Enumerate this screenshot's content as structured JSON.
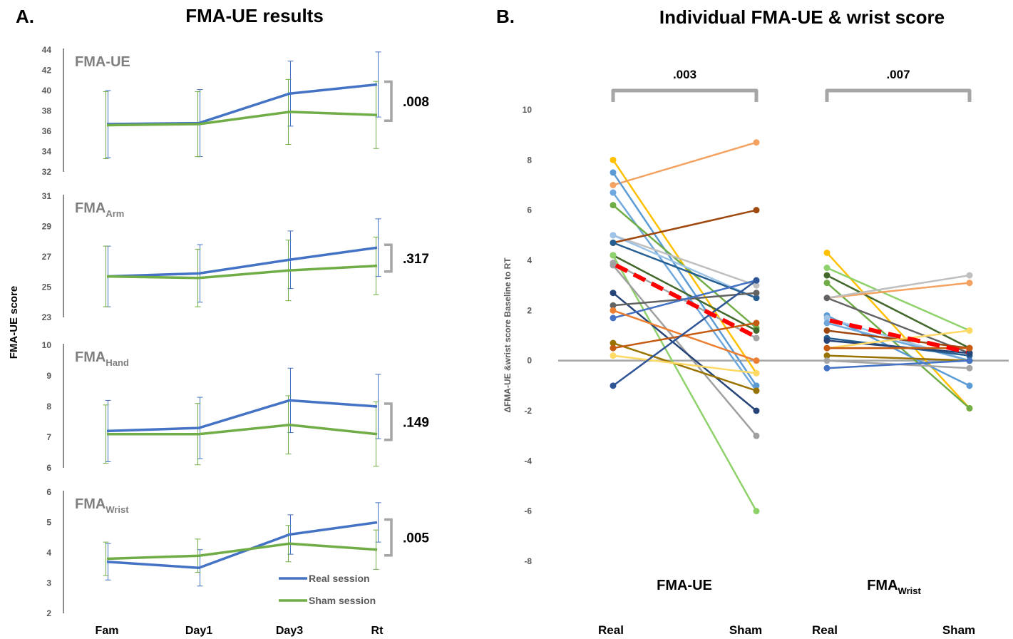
{
  "colors": {
    "real": "#4472C4",
    "sham": "#70AD47",
    "axis": "#404040",
    "grey_text": "#7F7F7F",
    "bracket": "#A6A6A6",
    "mean": "#FF0000",
    "zero_line": "#A6A6A6",
    "tick": "#595959"
  },
  "chart_data": [
    {
      "type": "line",
      "panel_label": "A.",
      "title": "FMA-UE results",
      "ylabel": "FMA-UE score",
      "categories": [
        "Fam",
        "Day1",
        "Day3",
        "Rt"
      ],
      "legend": [
        "Real session",
        "Sham session"
      ],
      "legend_position": "bottom-right of last subplot",
      "subplots": [
        {
          "name": "FMA-UE",
          "name_main": "FMA-UE",
          "name_sub": "",
          "ylim": [
            32,
            44
          ],
          "yticks": [
            32,
            34,
            36,
            38,
            40,
            42,
            44
          ],
          "p_value": ".008",
          "series": [
            {
              "name": "Real session",
              "values": [
                36.7,
                36.8,
                39.7,
                40.6
              ],
              "err": [
                3.3,
                3.3,
                3.2,
                3.2
              ]
            },
            {
              "name": "Sham session",
              "values": [
                36.6,
                36.7,
                37.9,
                37.6
              ],
              "err": [
                3.3,
                3.2,
                3.2,
                3.3
              ]
            }
          ]
        },
        {
          "name": "FMA_Arm",
          "name_main": "FMA",
          "name_sub": "Arm",
          "ylim": [
            23,
            31
          ],
          "yticks": [
            23,
            25,
            27,
            29,
            31
          ],
          "p_value": ".317",
          "series": [
            {
              "name": "Real session",
              "values": [
                25.7,
                25.9,
                26.8,
                27.6
              ],
              "err": [
                2.0,
                1.9,
                1.9,
                1.9
              ]
            },
            {
              "name": "Sham session",
              "values": [
                25.7,
                25.6,
                26.1,
                26.4
              ],
              "err": [
                2.0,
                1.9,
                2.0,
                1.9
              ]
            }
          ]
        },
        {
          "name": "FMA_Hand",
          "name_main": "FMA",
          "name_sub": "Hand",
          "ylim": [
            6,
            10
          ],
          "yticks": [
            6,
            7,
            8,
            9,
            10
          ],
          "p_value": ".149",
          "series": [
            {
              "name": "Real session",
              "values": [
                7.2,
                7.3,
                8.2,
                8.0
              ],
              "err": [
                1.0,
                1.0,
                1.05,
                1.05
              ]
            },
            {
              "name": "Sham session",
              "values": [
                7.1,
                7.1,
                7.4,
                7.1
              ],
              "err": [
                0.95,
                1.0,
                0.95,
                1.05
              ]
            }
          ]
        },
        {
          "name": "FMA_Wrist",
          "name_main": "FMA",
          "name_sub": "Wrist",
          "ylim": [
            2,
            6
          ],
          "yticks": [
            2,
            3,
            4,
            5,
            6
          ],
          "p_value": ".005",
          "series": [
            {
              "name": "Real session",
              "values": [
                3.7,
                3.5,
                4.6,
                5.0
              ],
              "err": [
                0.6,
                0.6,
                0.65,
                0.65
              ]
            },
            {
              "name": "Sham session",
              "values": [
                3.8,
                3.9,
                4.3,
                4.1
              ],
              "err": [
                0.55,
                0.55,
                0.6,
                0.65
              ]
            }
          ]
        }
      ]
    },
    {
      "type": "line",
      "subtype": "paired individual lines",
      "panel_label": "B.",
      "title": "Individual FMA-UE & wrist score",
      "ylabel": "ΔFMA-UE &wrist score Baseline to RT",
      "ylim": [
        -8,
        10
      ],
      "yticks": [
        -8,
        -6,
        -4,
        -2,
        0,
        2,
        4,
        6,
        8,
        10
      ],
      "groups": [
        {
          "name": "FMA-UE",
          "name_main": "FMA-UE",
          "name_sub": "",
          "x_labels": [
            "Real",
            "Sham"
          ],
          "p_value": ".003",
          "mean": [
            3.8,
            1.0
          ],
          "pairs": [
            {
              "values": [
                8.0,
                -0.5
              ],
              "color": "#FFC000"
            },
            {
              "values": [
                7.0,
                8.7
              ],
              "color": "#F4A261"
            },
            {
              "values": [
                7.5,
                -1.0
              ],
              "color": "#5B9BD5"
            },
            {
              "values": [
                6.7,
                -1.2
              ],
              "color": "#6FA8DC"
            },
            {
              "values": [
                6.2,
                1.3
              ],
              "color": "#70AD47"
            },
            {
              "values": [
                5.0,
                3.0
              ],
              "color": "#BFBFBF"
            },
            {
              "values": [
                5.0,
                2.5
              ],
              "color": "#9DC3E6"
            },
            {
              "values": [
                4.7,
                6.0
              ],
              "color": "#9E480E"
            },
            {
              "values": [
                4.7,
                2.5
              ],
              "color": "#255E91"
            },
            {
              "values": [
                4.2,
                1.2
              ],
              "color": "#43682B"
            },
            {
              "values": [
                4.2,
                -6.0
              ],
              "color": "#8FD16B"
            },
            {
              "values": [
                3.9,
                0.9
              ],
              "color": "#A5A5A5"
            },
            {
              "values": [
                3.8,
                -3.0
              ],
              "color": "#A0A0A0"
            },
            {
              "values": [
                2.7,
                -2.0
              ],
              "color": "#264478"
            },
            {
              "values": [
                2.2,
                2.7
              ],
              "color": "#636363"
            },
            {
              "values": [
                1.7,
                3.2
              ],
              "color": "#4472C4"
            },
            {
              "values": [
                2.0,
                0.0
              ],
              "color": "#ED7D31"
            },
            {
              "values": [
                0.7,
                -1.2
              ],
              "color": "#997300"
            },
            {
              "values": [
                0.5,
                1.5
              ],
              "color": "#C55A11"
            },
            {
              "values": [
                0.2,
                -0.5
              ],
              "color": "#FFD966"
            },
            {
              "values": [
                -1.0,
                3.2
              ],
              "color": "#2F5597"
            }
          ]
        },
        {
          "name": "FMA_Wrist",
          "name_main": "FMA",
          "name_sub": "Wrist",
          "x_labels": [
            "Real",
            "Sham"
          ],
          "p_value": ".007",
          "mean": [
            1.6,
            0.35
          ],
          "pairs": [
            {
              "values": [
                4.3,
                -1.9
              ],
              "color": "#FFC000"
            },
            {
              "values": [
                3.7,
                1.2
              ],
              "color": "#8FD16B"
            },
            {
              "values": [
                3.4,
                0.5
              ],
              "color": "#43682B"
            },
            {
              "values": [
                3.1,
                -1.9
              ],
              "color": "#70AD47"
            },
            {
              "values": [
                2.5,
                3.1
              ],
              "color": "#F4A261"
            },
            {
              "values": [
                2.5,
                3.4
              ],
              "color": "#BFBFBF"
            },
            {
              "values": [
                2.5,
                0.3
              ],
              "color": "#636363"
            },
            {
              "values": [
                1.8,
                -1.0
              ],
              "color": "#5B9BD5"
            },
            {
              "values": [
                1.7,
                0.0
              ],
              "color": "#9DC3E6"
            },
            {
              "values": [
                1.5,
                0.0
              ],
              "color": "#6FA8DC"
            },
            {
              "values": [
                1.2,
                0.5
              ],
              "color": "#9E480E"
            },
            {
              "values": [
                0.9,
                0.2
              ],
              "color": "#255E91"
            },
            {
              "values": [
                0.8,
                0.3
              ],
              "color": "#264478"
            },
            {
              "values": [
                0.5,
                1.2
              ],
              "color": "#FFD966"
            },
            {
              "values": [
                0.5,
                0.5
              ],
              "color": "#ED7D31"
            },
            {
              "values": [
                0.5,
                0.5
              ],
              "color": "#C55A11"
            },
            {
              "values": [
                0.2,
                0.0
              ],
              "color": "#997300"
            },
            {
              "values": [
                0.0,
                -0.3
              ],
              "color": "#A5A5A5"
            },
            {
              "values": [
                -0.3,
                0.0
              ],
              "color": "#4472C4"
            }
          ]
        }
      ]
    }
  ]
}
